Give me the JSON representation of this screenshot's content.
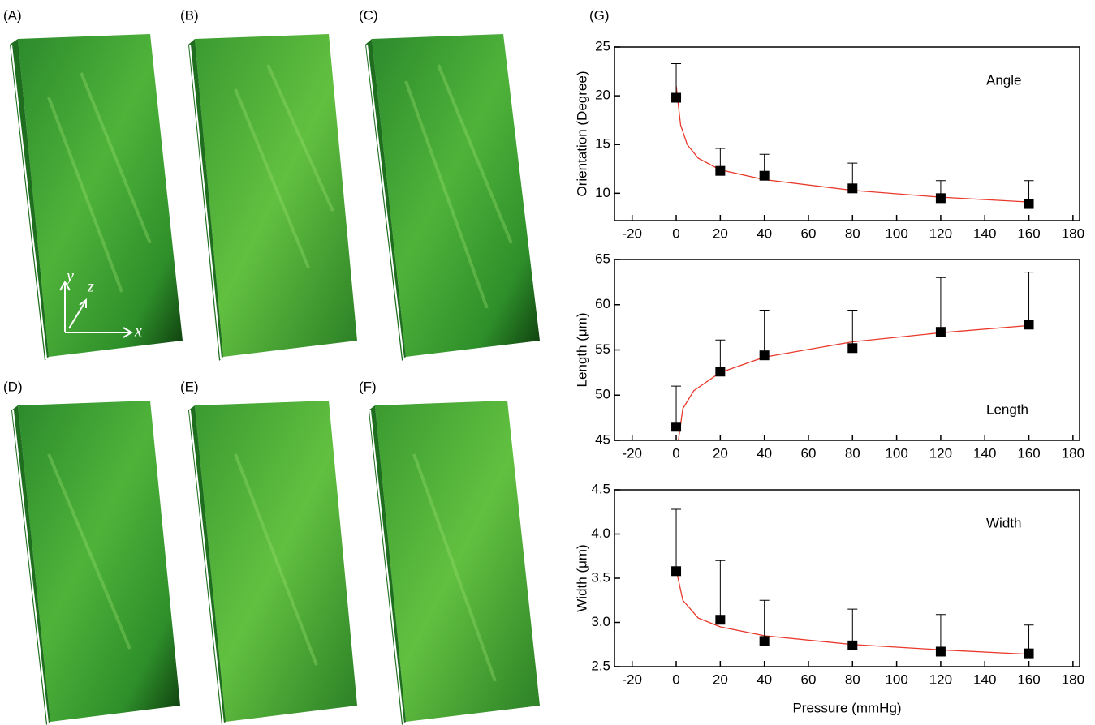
{
  "panel_labels": [
    "(A)",
    "(B)",
    "(C)",
    "(D)",
    "(E)",
    "(F)",
    "(G)"
  ],
  "axis_letters": {
    "x": "x",
    "y": "y",
    "z": "z"
  },
  "chart_data": [
    {
      "type": "scatter",
      "ylabel": "Orientation (Degree)",
      "annotation": "Angle",
      "x": [
        0,
        20,
        40,
        80,
        120,
        160
      ],
      "values": [
        19.8,
        12.3,
        11.8,
        10.5,
        9.5,
        8.9
      ],
      "errors": [
        3.5,
        2.3,
        2.2,
        2.6,
        1.8,
        2.4
      ],
      "color": "#000000",
      "fit": {
        "x": [
          0,
          2,
          5,
          10,
          20,
          40,
          80,
          120,
          160
        ],
        "values": [
          21,
          17,
          15,
          13.6,
          12.4,
          11.4,
          10.3,
          9.6,
          9.1
        ],
        "color": "#e8392b"
      },
      "xlim": [
        -28,
        183
      ],
      "xticks": [
        -20,
        0,
        20,
        40,
        60,
        80,
        100,
        120,
        140,
        160,
        180
      ],
      "ylim": [
        7.2,
        25
      ],
      "yticks": [
        10,
        15,
        20,
        25
      ]
    },
    {
      "type": "scatter",
      "ylabel": "Length (μm)",
      "annotation": "Length",
      "x": [
        0,
        20,
        40,
        80,
        120,
        160
      ],
      "values": [
        46.5,
        52.6,
        54.4,
        55.2,
        57.0,
        57.8
      ],
      "errors": [
        4.5,
        3.5,
        5.0,
        4.2,
        6.0,
        5.8
      ],
      "color": "#000000",
      "fit": {
        "x": [
          1,
          3,
          8,
          20,
          40,
          80,
          120,
          160
        ],
        "values": [
          45,
          48.5,
          50.5,
          52.5,
          54.2,
          55.9,
          56.9,
          57.7
        ],
        "color": "#e8392b"
      },
      "xlim": [
        -28,
        183
      ],
      "xticks": [
        -20,
        0,
        20,
        40,
        60,
        80,
        100,
        120,
        140,
        160,
        180
      ],
      "ylim": [
        45,
        65
      ],
      "yticks": [
        45,
        50,
        55,
        60,
        65
      ]
    },
    {
      "type": "scatter",
      "ylabel": "Width (μm)",
      "annotation": "Width",
      "xlabel": "Pressure (mmHg)",
      "x": [
        0,
        20,
        40,
        80,
        120,
        160
      ],
      "values": [
        3.58,
        3.03,
        2.79,
        2.74,
        2.67,
        2.65
      ],
      "errors": [
        0.7,
        0.67,
        0.46,
        0.41,
        0.42,
        0.32
      ],
      "color": "#000000",
      "fit": {
        "x": [
          0,
          3,
          10,
          20,
          40,
          80,
          120,
          160
        ],
        "values": [
          3.6,
          3.25,
          3.05,
          2.95,
          2.85,
          2.75,
          2.69,
          2.64
        ],
        "color": "#e8392b"
      },
      "xlim": [
        -28,
        183
      ],
      "xticks": [
        -20,
        0,
        20,
        40,
        60,
        80,
        100,
        120,
        140,
        160,
        180
      ],
      "ylim": [
        2.5,
        4.5
      ],
      "yticks": [
        2.5,
        {
          "value": 3,
          "label": "3.0"
        },
        3.5,
        {
          "value": 4,
          "label": "4.0"
        },
        4.5
      ]
    }
  ]
}
